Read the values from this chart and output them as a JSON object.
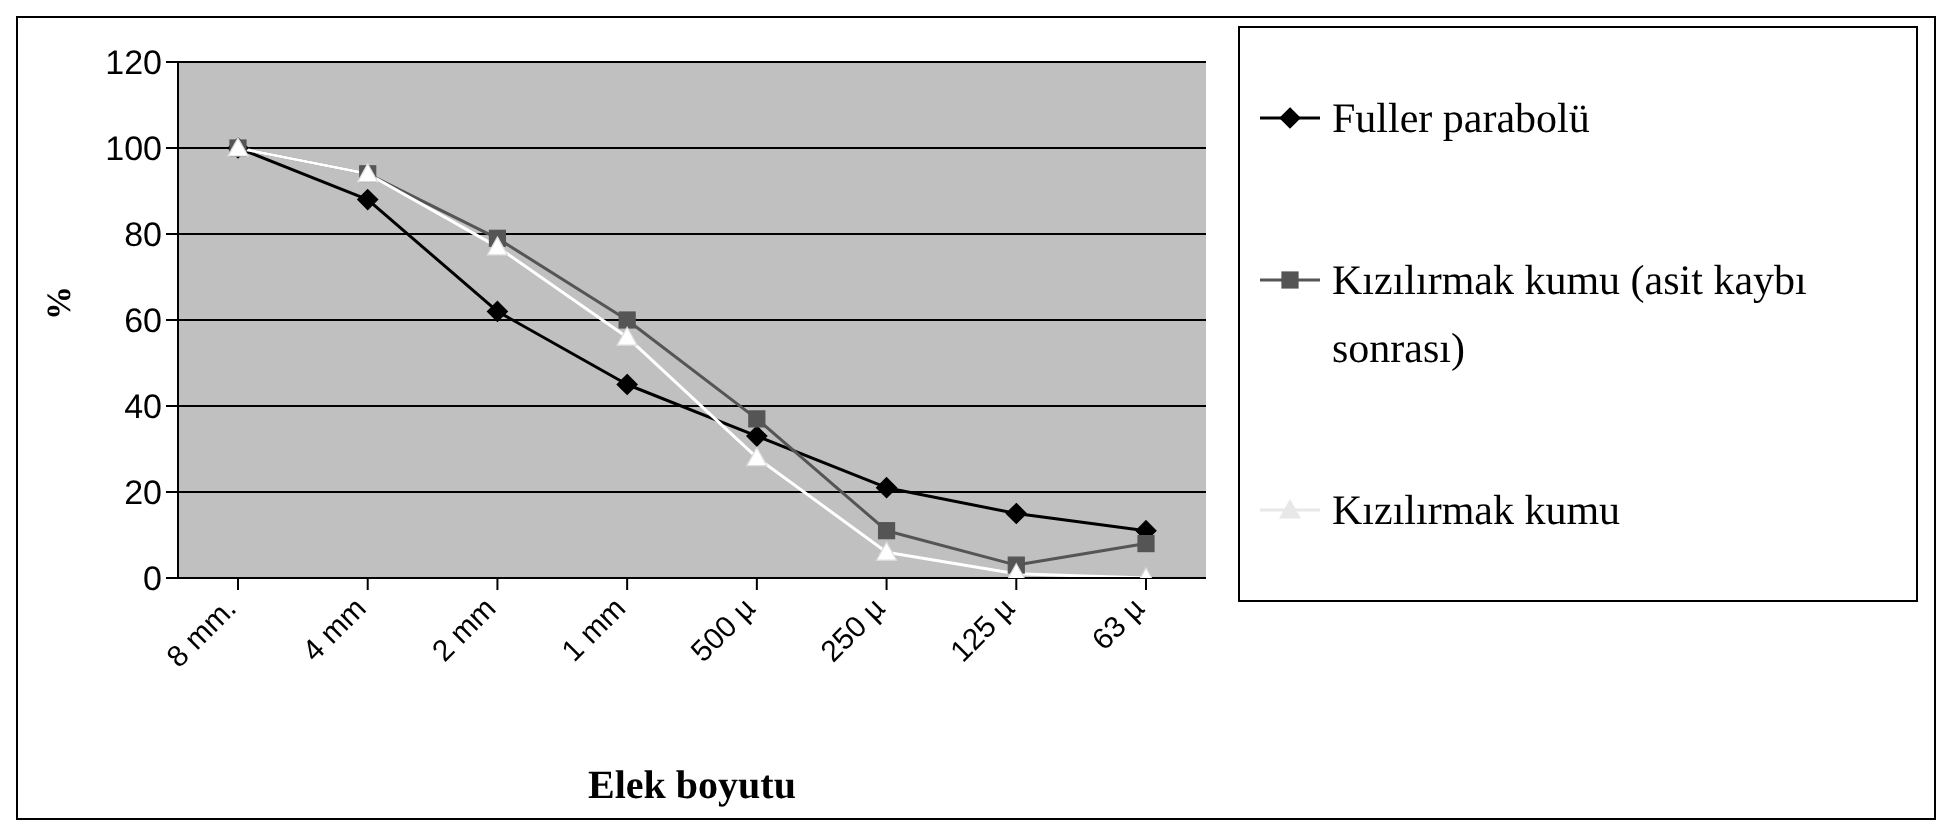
{
  "chart_data": {
    "type": "line",
    "xlabel": "Elek boyutu",
    "ylabel": "%",
    "categories": [
      "8 mm.",
      "4 mm",
      "2 mm",
      "1 mm",
      "500 µ",
      "250 µ",
      "125 µ",
      "63 µ"
    ],
    "series": [
      {
        "name": "Fuller parabolü",
        "color": "#000000",
        "marker": "diamond",
        "values": [
          100,
          88,
          62,
          45,
          33,
          21,
          15,
          11
        ]
      },
      {
        "name": "Kızılırmak kumu (asit kaybı sonrası)",
        "color": "#555555",
        "marker": "square",
        "values": [
          100,
          94,
          79,
          60,
          37,
          11,
          3,
          8
        ]
      },
      {
        "name": "Kızılırmak kumu",
        "color": "#ffffff",
        "marker": "triangle",
        "values": [
          100,
          94,
          77,
          56,
          28,
          6,
          1,
          0
        ]
      }
    ],
    "ylim": [
      0,
      120
    ],
    "yticks": [
      0,
      20,
      40,
      60,
      80,
      100,
      120
    ],
    "grid": "y",
    "legend": "right",
    "line_style": "solid"
  }
}
